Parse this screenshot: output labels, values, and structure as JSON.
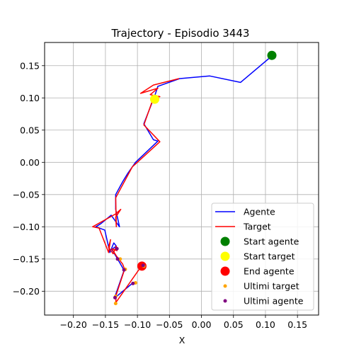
{
  "chart_data": {
    "type": "line",
    "title": "Trajectory - Episodio 3443",
    "xlabel": "X",
    "ylabel": "Y",
    "xlim": [
      -0.245,
      0.183
    ],
    "ylim": [
      -0.237,
      0.186
    ],
    "xticks": [
      -0.2,
      -0.15,
      -0.1,
      -0.05,
      0.0,
      0.05,
      0.1,
      0.15
    ],
    "xtick_labels": [
      "−0.20",
      "−0.15",
      "−0.10",
      "−0.05",
      "0.00",
      "0.05",
      "0.10",
      "0.15"
    ],
    "yticks": [
      -0.2,
      -0.15,
      -0.1,
      -0.05,
      0.0,
      0.05,
      0.1,
      0.15
    ],
    "ytick_labels": [
      "−0.20",
      "−0.15",
      "−0.10",
      "−0.05",
      "0.00",
      "0.05",
      "0.10",
      "0.15"
    ],
    "grid": true,
    "legend_position": "lower-right",
    "series": [
      {
        "name": "Agente",
        "color": "#0000ff",
        "x": [
          0.11,
          0.061,
          0.013,
          -0.034,
          -0.068,
          -0.073,
          -0.09,
          -0.075,
          -0.068,
          -0.103,
          -0.115,
          -0.123,
          -0.134,
          -0.134,
          -0.128,
          -0.141,
          -0.157,
          -0.165,
          -0.151,
          -0.143,
          -0.137,
          -0.133,
          -0.14,
          -0.131,
          -0.124,
          -0.121,
          -0.134,
          -0.135,
          -0.107
        ],
        "y": [
          0.165,
          0.124,
          0.134,
          0.13,
          0.118,
          0.103,
          0.06,
          0.035,
          0.033,
          0.0,
          -0.017,
          -0.03,
          -0.05,
          -0.073,
          -0.1,
          -0.082,
          -0.095,
          -0.1,
          -0.105,
          -0.14,
          -0.125,
          -0.13,
          -0.135,
          -0.15,
          -0.162,
          -0.168,
          -0.205,
          -0.21,
          -0.187
        ]
      },
      {
        "name": "Target",
        "color": "#ff0000",
        "x": [
          -0.035,
          -0.075,
          -0.095,
          -0.068,
          -0.08,
          -0.065,
          -0.075,
          -0.09,
          -0.065,
          -0.108,
          -0.134,
          -0.133,
          -0.134,
          -0.126,
          -0.134,
          -0.17,
          -0.16,
          -0.145,
          -0.142,
          -0.145,
          -0.138,
          -0.133,
          -0.132,
          -0.14,
          -0.133,
          -0.123,
          -0.12,
          -0.133,
          -0.134,
          -0.093
        ],
        "y": [
          0.13,
          0.12,
          0.107,
          0.115,
          0.105,
          0.102,
          0.1,
          0.058,
          0.032,
          -0.007,
          -0.055,
          -0.1,
          -0.085,
          -0.073,
          -0.08,
          -0.1,
          -0.102,
          -0.14,
          -0.12,
          -0.132,
          -0.142,
          -0.13,
          -0.137,
          -0.134,
          -0.145,
          -0.158,
          -0.166,
          -0.205,
          -0.218,
          -0.16
        ]
      }
    ],
    "markers": [
      {
        "name": "Start agente",
        "color": "#008000",
        "x": 0.11,
        "y": 0.166,
        "size": "large"
      },
      {
        "name": "Start target",
        "color": "#ffff00",
        "x": -0.073,
        "y": 0.098,
        "size": "large"
      },
      {
        "name": "End agente",
        "color": "#ff0000",
        "x": -0.093,
        "y": -0.161,
        "size": "large"
      },
      {
        "name": "Ultimi target",
        "color": "#ffa500",
        "x": [
          -0.09,
          -0.103,
          -0.119,
          -0.134,
          -0.127,
          -0.134
        ],
        "y": [
          -0.161,
          -0.187,
          -0.166,
          -0.219,
          -0.15,
          -0.208
        ],
        "size": "small"
      },
      {
        "name": "Ultimi agente",
        "color": "#800080",
        "x": [
          -0.091,
          -0.107,
          -0.121,
          -0.135,
          -0.131,
          -0.132
        ],
        "y": [
          -0.16,
          -0.188,
          -0.167,
          -0.21,
          -0.15,
          -0.134
        ],
        "size": "small"
      }
    ]
  }
}
